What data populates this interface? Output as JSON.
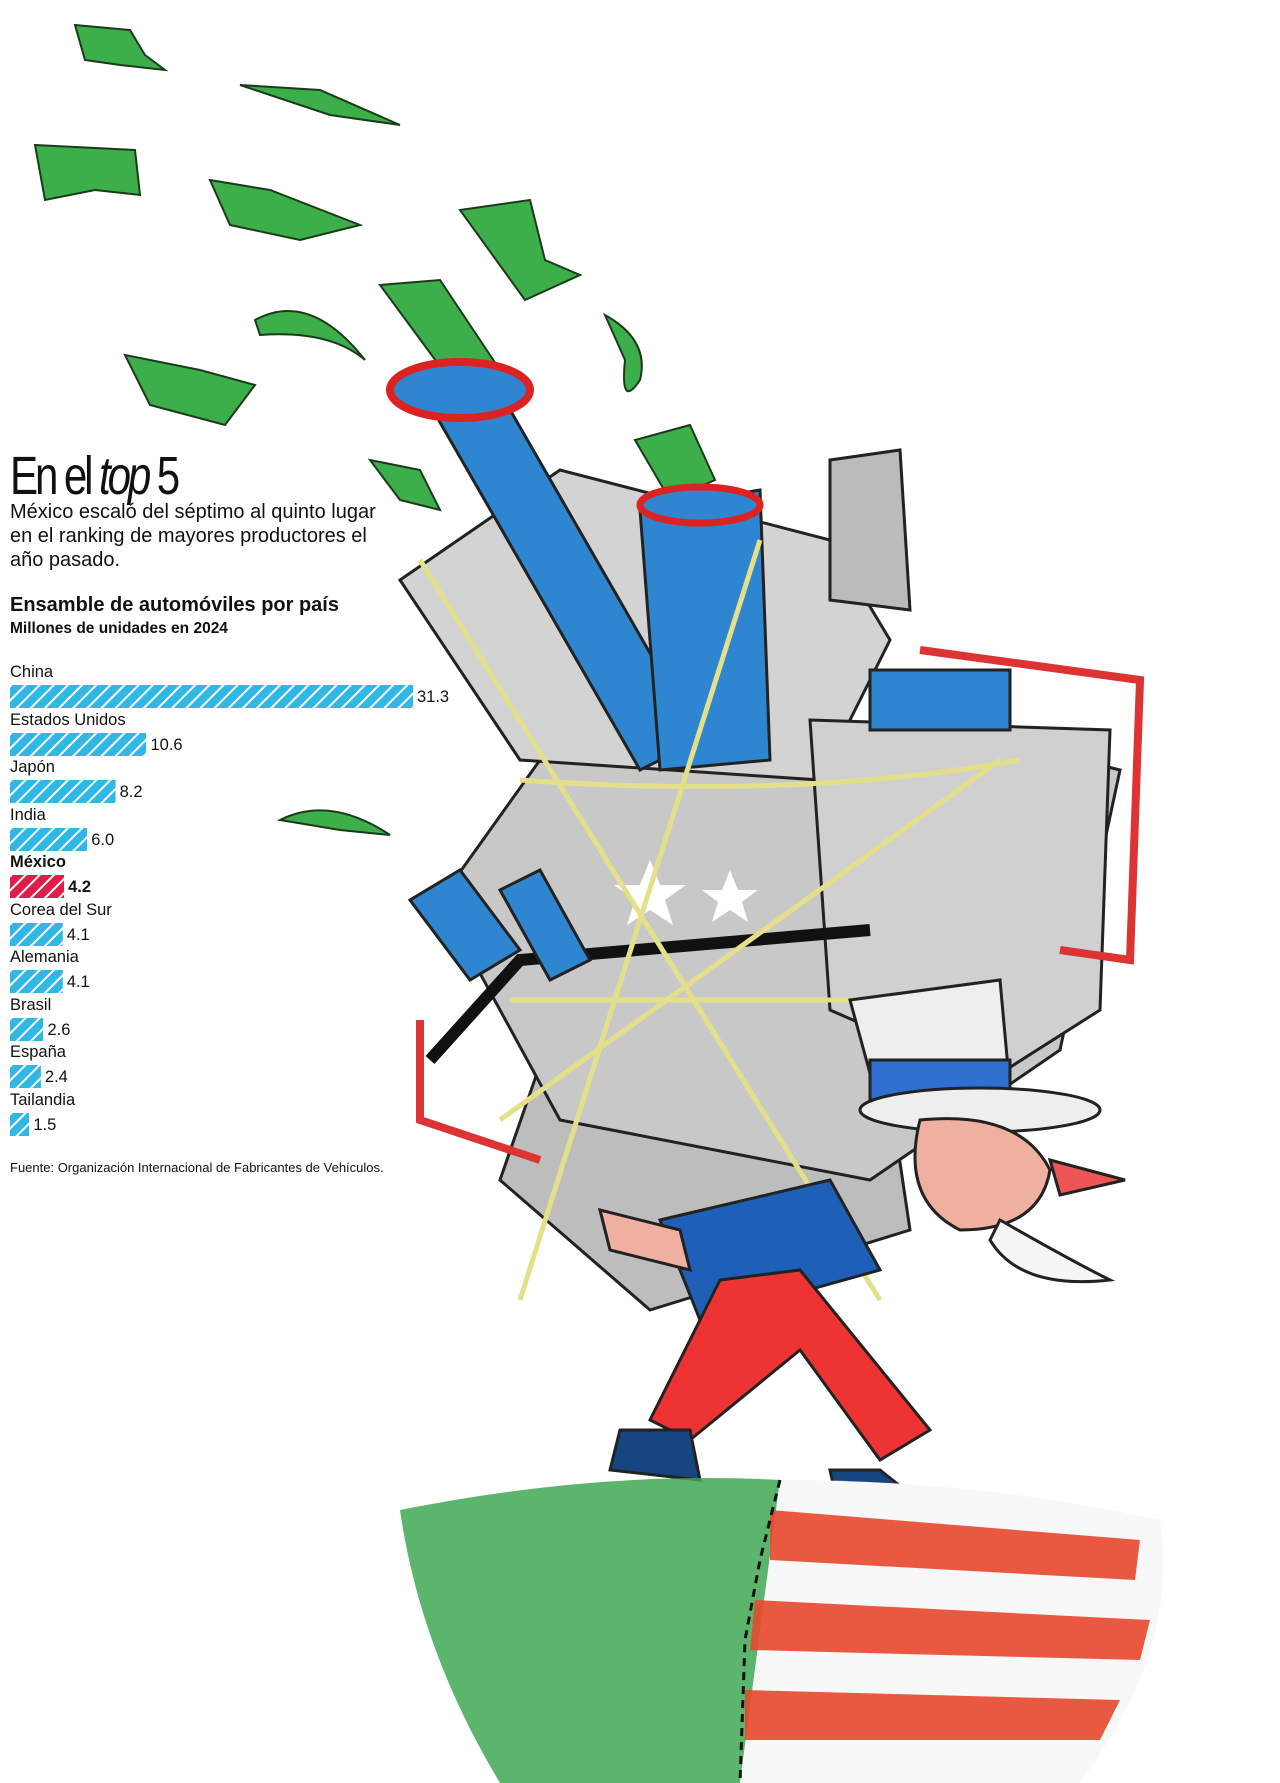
{
  "header": {
    "title_plain": "En el ",
    "title_italic": "top",
    "title_end": " 5",
    "subtitle": "México escaló del séptimo al quinto lugar en el ranking de mayores productores el año pasado."
  },
  "colors": {
    "bar": "#2fb8e6",
    "highlight": "#e01c48",
    "stripe": "#ffffff"
  },
  "chart_data": {
    "type": "bar",
    "orientation": "horizontal",
    "title": "Ensamble de automóviles por país",
    "subtitle": "Millones de unidades en 2024",
    "categories": [
      "China",
      "Estados Unidos",
      "Japón",
      "India",
      "México",
      "Corea del Sur",
      "Alemania",
      "Brasil",
      "España",
      "Tailandia"
    ],
    "values": [
      31.3,
      10.6,
      8.2,
      6.0,
      4.2,
      4.1,
      4.1,
      2.6,
      2.4,
      1.5
    ],
    "value_labels": [
      "31.3",
      "10.6",
      "8.2",
      "6.0",
      "4.2",
      "4.1",
      "4.1",
      "2.6",
      "2.4",
      "1.5"
    ],
    "highlight": "México",
    "grid": false
  },
  "source": "Fuente: Organización Internacional de Fabricantes de Vehículos."
}
